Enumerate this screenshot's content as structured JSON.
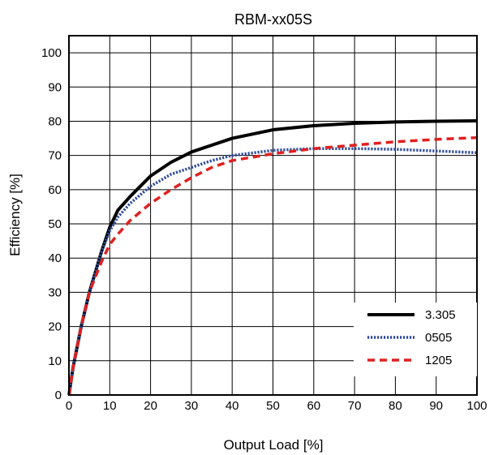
{
  "chart_data": {
    "type": "line",
    "title": "RBM-xx05S",
    "xlabel": "Output Load [%]",
    "ylabel": "Efficiency [%]",
    "xlim": [
      0,
      100
    ],
    "ylim": [
      0,
      105
    ],
    "xticks": [
      0,
      10,
      20,
      30,
      40,
      50,
      60,
      70,
      80,
      90,
      100
    ],
    "yticks": [
      0,
      10,
      20,
      30,
      40,
      50,
      60,
      70,
      80,
      90,
      100
    ],
    "grid": true,
    "legend_position": "bottom-right",
    "series": [
      {
        "name": "3.305",
        "color": "#000000",
        "dash": "solid",
        "x": [
          0,
          1,
          3,
          5,
          8,
          10,
          12,
          15,
          20,
          25,
          30,
          35,
          40,
          50,
          60,
          70,
          80,
          90,
          100
        ],
        "y": [
          0,
          8,
          20,
          30,
          42,
          49,
          54,
          58,
          64,
          68,
          71,
          73,
          75,
          77.5,
          78.7,
          79.4,
          79.8,
          80,
          80.1
        ]
      },
      {
        "name": "0505",
        "color": "#2b4a9a",
        "dash": "dotted",
        "x": [
          0,
          1,
          3,
          5,
          8,
          10,
          12,
          15,
          20,
          25,
          30,
          35,
          40,
          50,
          60,
          70,
          80,
          90,
          100
        ],
        "y": [
          0,
          8,
          20,
          30,
          42,
          48,
          52,
          56,
          61,
          64.5,
          66.5,
          68.5,
          70,
          71.5,
          72,
          72,
          71.8,
          71.3,
          70.8
        ]
      },
      {
        "name": "1205",
        "color": "#e02020",
        "dash": "dashed",
        "x": [
          0,
          1,
          3,
          5,
          8,
          10,
          12,
          15,
          20,
          25,
          30,
          35,
          40,
          50,
          60,
          70,
          80,
          90,
          100
        ],
        "y": [
          0,
          8,
          20,
          30,
          39,
          44,
          47,
          51,
          56,
          60,
          63.5,
          66.5,
          68.5,
          70.5,
          72,
          73,
          74,
          74.7,
          75.2
        ]
      }
    ]
  }
}
